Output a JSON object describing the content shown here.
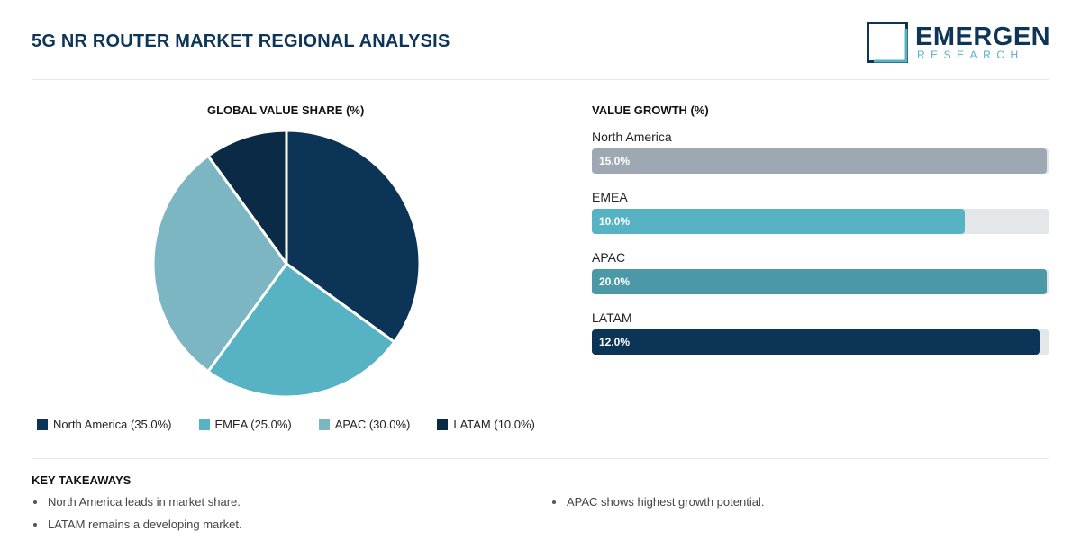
{
  "header": {
    "title": "5G NR ROUTER MARKET REGIONAL ANALYSIS",
    "logo_word": "EMERGEN",
    "logo_sub": "RESEARCH"
  },
  "pie_section": {
    "title": "GLOBAL VALUE SHARE (%)"
  },
  "growth_section": {
    "title": "VALUE GROWTH (%)"
  },
  "key_takeaways": {
    "title": "KEY TAKEAWAYS",
    "left": [
      "North America leads in market share.",
      "LATAM remains a developing market."
    ],
    "right": [
      "APAC shows highest growth potential."
    ]
  },
  "colors": {
    "north_america": "#0b3457",
    "emea": "#57b2c4",
    "apac": "#7cb6c3",
    "latam": "#0b2a45",
    "growth_north_america": "#9ea8b2",
    "growth_emea": "#57b2c4",
    "growth_apac": "#4b98a7",
    "growth_latam": "#0b3457"
  },
  "chart_data": [
    {
      "type": "pie",
      "title": "GLOBAL VALUE SHARE (%)",
      "categories": [
        "North America",
        "EMEA",
        "APAC",
        "LATAM"
      ],
      "values": [
        35.0,
        25.0,
        30.0,
        10.0
      ],
      "legend": [
        "North America (35.0%)",
        "EMEA (25.0%)",
        "APAC (30.0%)",
        "LATAM (10.0%)"
      ],
      "legend_position": "bottom"
    },
    {
      "type": "bar",
      "orientation": "horizontal",
      "title": "VALUE GROWTH (%)",
      "categories": [
        "North America",
        "EMEA",
        "APAC",
        "LATAM"
      ],
      "values": [
        15.0,
        10.0,
        20.0,
        12.0
      ],
      "labels": [
        "15.0%",
        "10.0%",
        "20.0%",
        "12.0%"
      ],
      "bar_fill_fraction": [
        0.995,
        0.815,
        0.995,
        0.978
      ]
    }
  ]
}
